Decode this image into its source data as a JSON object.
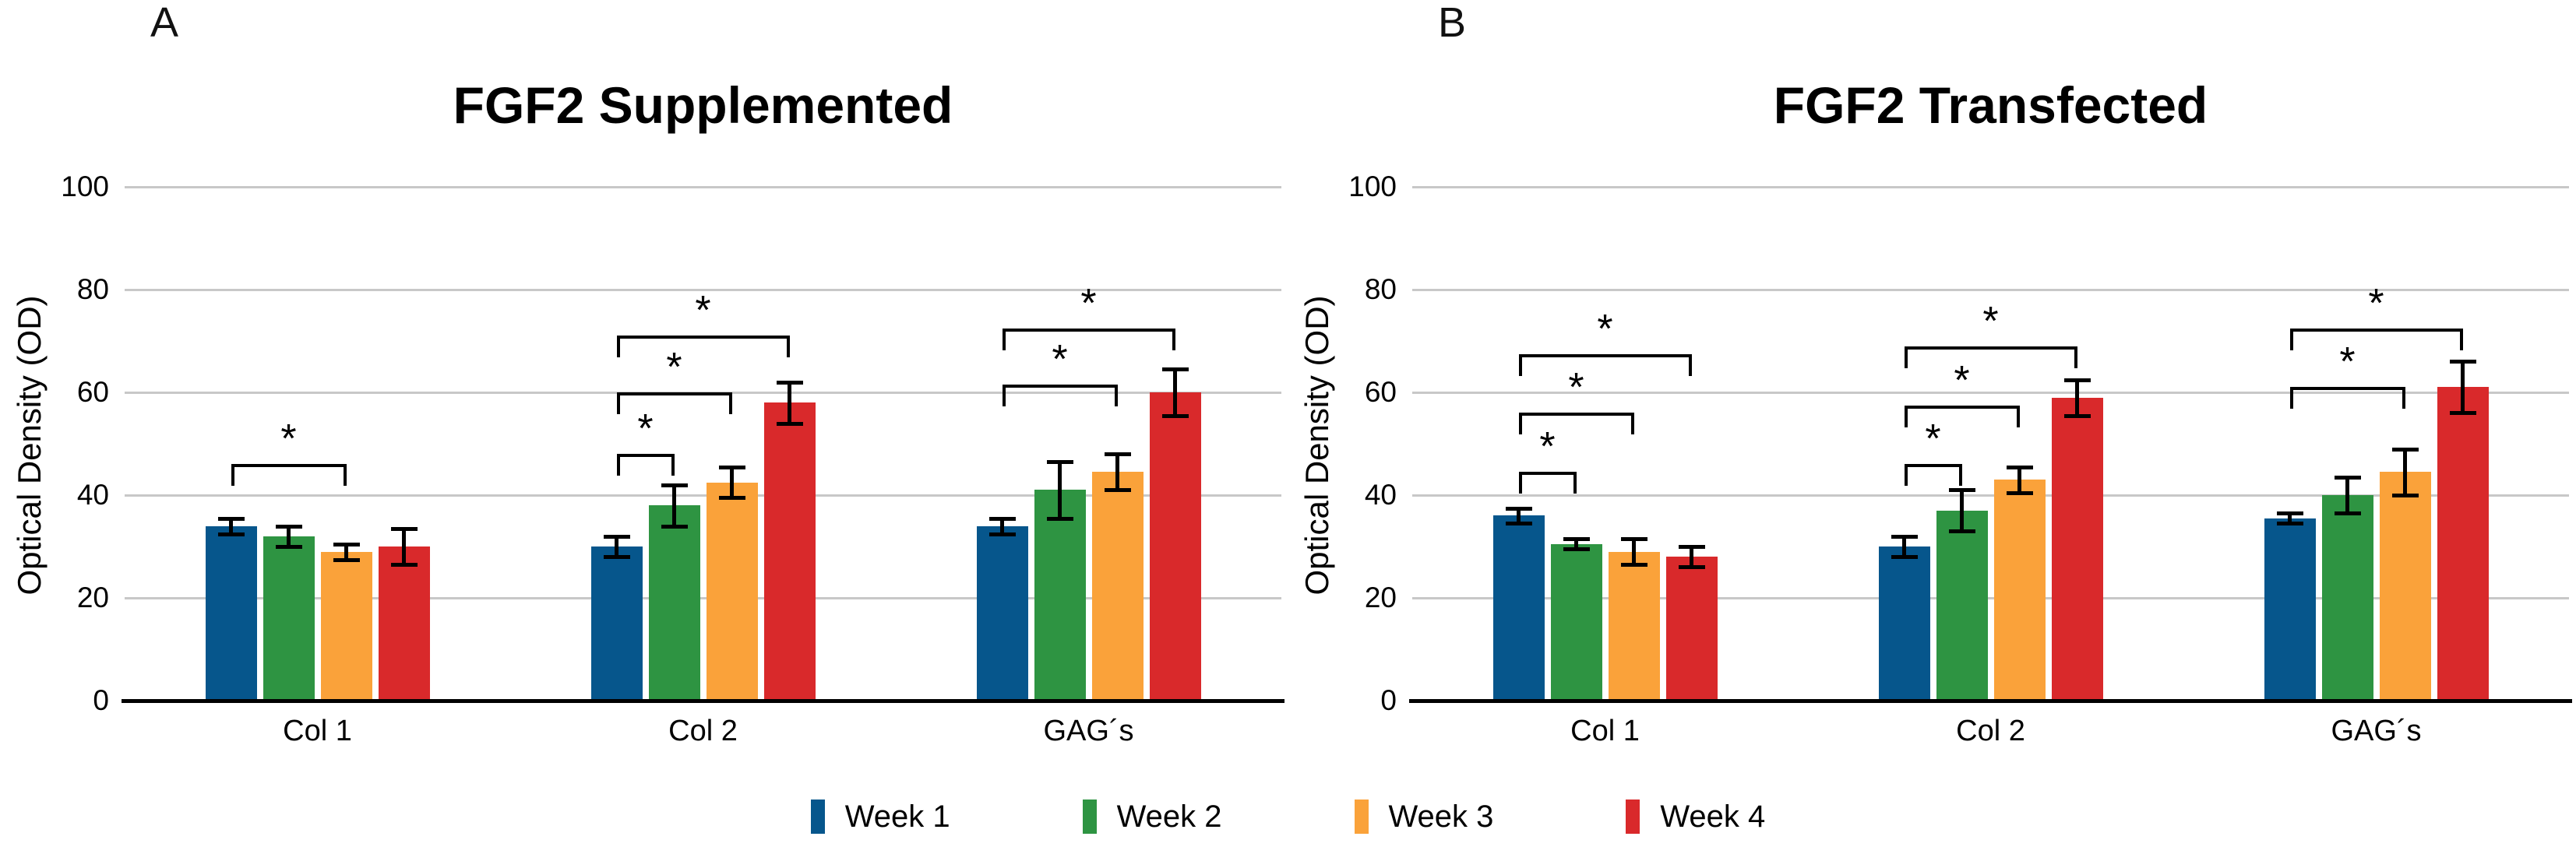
{
  "style": {
    "background": "#FFFFFF",
    "grid_color": "#C8C8C8",
    "axis_color": "#000000",
    "error_bar_color": "#000000",
    "text_color": "#000000"
  },
  "chart_data": [
    {
      "type": "bar",
      "panel_letter": "A",
      "title": "FGF2 Supplemented",
      "ylabel": "Optical Density (OD)",
      "xlabel": "",
      "ylim": [
        0,
        100
      ],
      "yticks": [
        0,
        20,
        40,
        60,
        80,
        100
      ],
      "grid": "horizontal",
      "legend_position": "bottom",
      "categories": [
        "Col 1",
        "Col 2",
        "GAG´s"
      ],
      "series": [
        {
          "name": "Week 1",
          "color": "#06568C",
          "values": [
            34,
            30,
            34
          ],
          "errors": [
            1.5,
            2,
            1.5
          ]
        },
        {
          "name": "Week 2",
          "color": "#2E9442",
          "values": [
            32,
            38,
            41
          ],
          "errors": [
            2,
            4,
            5.5
          ]
        },
        {
          "name": "Week 3",
          "color": "#FAA23A",
          "values": [
            29,
            42.5,
            44.5
          ],
          "errors": [
            1.5,
            3,
            3.5
          ]
        },
        {
          "name": "Week 4",
          "color": "#D9292B",
          "values": [
            30,
            58,
            60
          ],
          "errors": [
            3.5,
            4,
            4.5
          ]
        }
      ],
      "significance_brackets": [
        {
          "category": 0,
          "from_series": 0,
          "to_series": 2,
          "level": 46,
          "label": "*"
        },
        {
          "category": 1,
          "from_series": 0,
          "to_series": 1,
          "level": 48,
          "label": "*"
        },
        {
          "category": 1,
          "from_series": 0,
          "to_series": 2,
          "level": 60,
          "label": "*"
        },
        {
          "category": 1,
          "from_series": 0,
          "to_series": 3,
          "level": 71,
          "label": "*"
        },
        {
          "category": 2,
          "from_series": 0,
          "to_series": 2,
          "level": 61.5,
          "label": "*"
        },
        {
          "category": 2,
          "from_series": 0,
          "to_series": 3,
          "level": 72.5,
          "label": "*"
        }
      ]
    },
    {
      "type": "bar",
      "panel_letter": "B",
      "title": "FGF2 Transfected",
      "ylabel": "Optical Density (OD)",
      "xlabel": "",
      "ylim": [
        0,
        100
      ],
      "yticks": [
        0,
        20,
        40,
        60,
        80,
        100
      ],
      "grid": "horizontal",
      "legend_position": "bottom",
      "categories": [
        "Col 1",
        "Col 2",
        "GAG´s"
      ],
      "series": [
        {
          "name": "Week 1",
          "color": "#06568C",
          "values": [
            36,
            30,
            35.5
          ],
          "errors": [
            1.5,
            2,
            1
          ]
        },
        {
          "name": "Week 2",
          "color": "#2E9442",
          "values": [
            30.5,
            37,
            40
          ],
          "errors": [
            1,
            4,
            3.5
          ]
        },
        {
          "name": "Week 3",
          "color": "#FAA23A",
          "values": [
            29,
            43,
            44.5
          ],
          "errors": [
            2.5,
            2.5,
            4.5
          ]
        },
        {
          "name": "Week 4",
          "color": "#D9292B",
          "values": [
            28,
            59,
            61
          ],
          "errors": [
            2,
            3.5,
            5
          ]
        }
      ],
      "significance_brackets": [
        {
          "category": 0,
          "from_series": 0,
          "to_series": 1,
          "level": 44.5,
          "label": "*"
        },
        {
          "category": 0,
          "from_series": 0,
          "to_series": 2,
          "level": 56,
          "label": "*"
        },
        {
          "category": 0,
          "from_series": 0,
          "to_series": 3,
          "level": 67.5,
          "label": "*"
        },
        {
          "category": 1,
          "from_series": 0,
          "to_series": 1,
          "level": 46,
          "label": "*"
        },
        {
          "category": 1,
          "from_series": 0,
          "to_series": 2,
          "level": 57.5,
          "label": "*"
        },
        {
          "category": 1,
          "from_series": 0,
          "to_series": 3,
          "level": 69,
          "label": "*"
        },
        {
          "category": 2,
          "from_series": 0,
          "to_series": 2,
          "level": 61,
          "label": "*"
        },
        {
          "category": 2,
          "from_series": 0,
          "to_series": 3,
          "level": 72.5,
          "label": "*"
        }
      ]
    }
  ]
}
